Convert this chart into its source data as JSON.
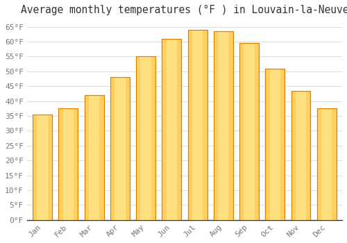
{
  "title": "Average monthly temperatures (°F ) in Louvain-la-Neuve",
  "months": [
    "Jan",
    "Feb",
    "Mar",
    "Apr",
    "May",
    "Jun",
    "Jul",
    "Aug",
    "Sep",
    "Oct",
    "Nov",
    "Dec"
  ],
  "values": [
    35.5,
    37.5,
    42.0,
    48.0,
    55.0,
    61.0,
    64.0,
    63.5,
    59.5,
    51.0,
    43.5,
    37.5
  ],
  "bar_color": "#FFA500",
  "bar_color_light": "#FFD060",
  "bar_edge_color": "#E08000",
  "background_color": "#FFFFFF",
  "grid_color": "#DDDDDD",
  "ylim": [
    0,
    67
  ],
  "title_fontsize": 10.5,
  "tick_fontsize": 8,
  "tick_font": "monospace",
  "title_color": "#333333",
  "tick_color": "#777777"
}
